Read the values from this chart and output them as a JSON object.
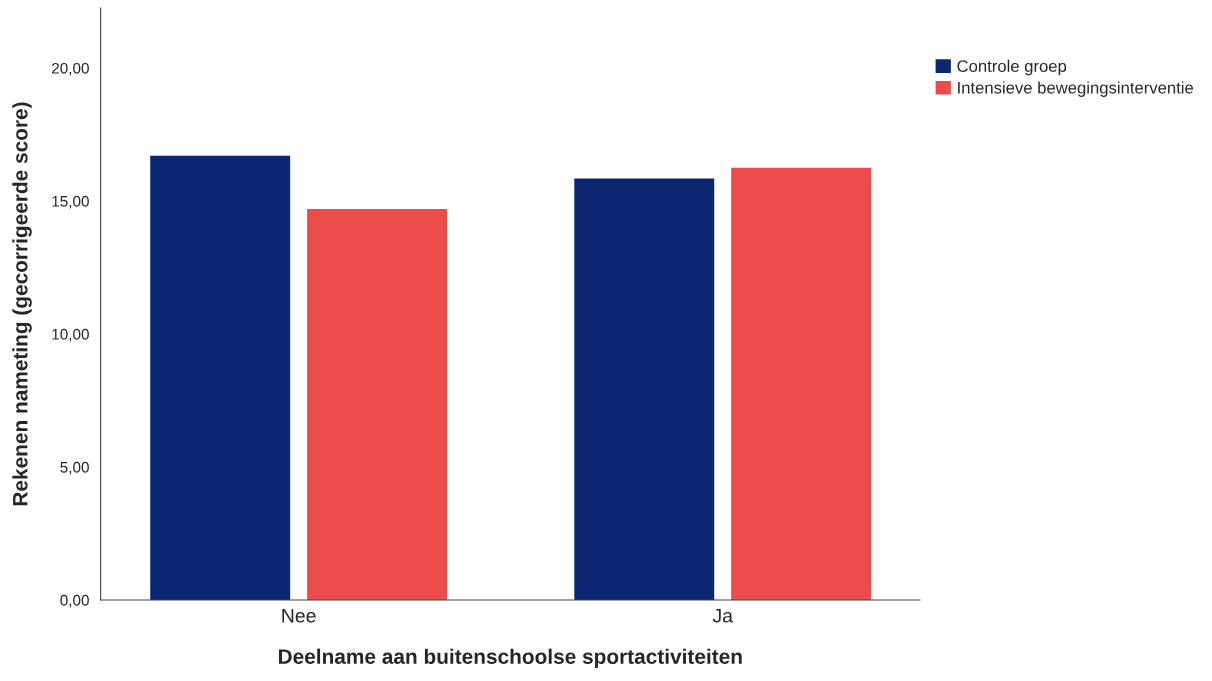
{
  "chart_data": {
    "type": "bar",
    "xlabel": "Deelname aan buitenschoolse sportactiviteiten",
    "ylabel": "Rekenen nameting (gecorrigeerde score)",
    "categories": [
      "Nee",
      "Ja"
    ],
    "series": [
      {
        "name": "Controle groep",
        "color": "#0b2771",
        "values": [
          16.7,
          15.85
        ]
      },
      {
        "name": "Intensieve bewegingsinterventie",
        "color": "#ec4b4b",
        "values": [
          14.7,
          16.25
        ]
      }
    ],
    "ylim": [
      0,
      22.25
    ],
    "yticks": [
      {
        "value": 0,
        "label": "0,00"
      },
      {
        "value": 5,
        "label": "5,00"
      },
      {
        "value": 10,
        "label": "10,00"
      },
      {
        "value": 15,
        "label": "15,00"
      },
      {
        "value": 20,
        "label": "20,00"
      }
    ],
    "legend": "top right",
    "grid": false
  }
}
